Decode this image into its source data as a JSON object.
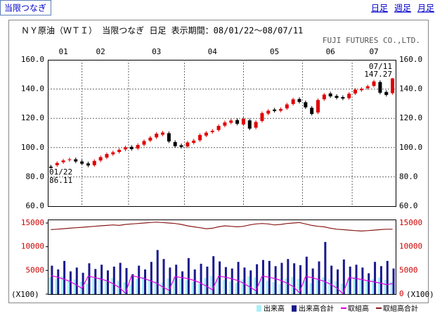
{
  "tab": "当限つなぎ",
  "links": [
    "日足",
    "週足",
    "月足"
  ],
  "chart_data": [
    {
      "type": "candlestick",
      "title": "ＮＹ原油（ＷＴＩ） 当限つなぎ 日足 表示期間：08/01/22～08/07/11",
      "publisher": "FUJI FUTURES CO.,LTD.",
      "categories": [
        null,
        null,
        "01",
        null,
        null,
        null,
        null,
        null,
        "02",
        null,
        null,
        null,
        null,
        null,
        null,
        null,
        null,
        "03",
        null,
        null,
        null,
        null,
        null,
        null,
        null,
        null,
        "04",
        null,
        null,
        null,
        null,
        null,
        null,
        null,
        null,
        null,
        "05",
        null,
        null,
        null,
        null,
        null,
        null,
        null,
        null,
        "06",
        null,
        null,
        null,
        null,
        null,
        null,
        "07",
        null,
        null,
        null
      ],
      "open": [
        87.0,
        88.0,
        90.0,
        91.5,
        92.0,
        90.5,
        89.2,
        88.0,
        91.2,
        93.2,
        95.4,
        97.0,
        98.8,
        100.5,
        99.4,
        102.0,
        104.8,
        107.0,
        108.8,
        109.8,
        103.8,
        101.6,
        100.8,
        103.2,
        105.0,
        108.2,
        110.6,
        112.0,
        115.0,
        117.0,
        118.8,
        115.8,
        118.6,
        113.6,
        118.2,
        123.2,
        126.0,
        125.2,
        126.8,
        129.8,
        133.2,
        131.0,
        127.2,
        124.0,
        133.0,
        137.0,
        135.3,
        134.5,
        133.8,
        137.0,
        139.2,
        140.6,
        142.2,
        144.8,
        138.0,
        137.2
      ],
      "high": [
        88.2,
        90.6,
        92.3,
        93.1,
        93.2,
        91.7,
        90.4,
        92.0,
        94.6,
        96.7,
        98.0,
        99.6,
        101.3,
        101.7,
        103.0,
        105.6,
        108.0,
        110.6,
        111.4,
        111.0,
        105.0,
        102.8,
        104.6,
        106.0,
        109.7,
        111.3,
        112.7,
        116.0,
        118.4,
        119.6,
        120.0,
        120.8,
        119.8,
        118.7,
        124.7,
        126.3,
        127.2,
        127.5,
        130.6,
        134.1,
        134.4,
        132.2,
        128.4,
        133.6,
        137.3,
        138.2,
        136.5,
        135.7,
        137.9,
        140.7,
        141.3,
        143.0,
        146.3,
        146.0,
        139.2,
        147.6
      ],
      "low": [
        85.8,
        86.9,
        88.9,
        90.3,
        89.4,
        88.0,
        86.6,
        86.9,
        90.0,
        92.1,
        94.3,
        95.9,
        97.6,
        97.9,
        98.3,
        100.9,
        103.7,
        105.9,
        107.7,
        103.1,
        99.9,
        99.4,
        99.7,
        102.1,
        103.9,
        107.1,
        109.5,
        110.9,
        113.9,
        115.9,
        115.2,
        114.7,
        111.9,
        112.5,
        117.1,
        122.1,
        123.9,
        124.1,
        125.7,
        128.7,
        130.1,
        126.4,
        121.9,
        122.9,
        131.9,
        133.9,
        132.9,
        132.4,
        132.7,
        135.9,
        138.1,
        139.5,
        141.1,
        136.4,
        134.9,
        136.1
      ],
      "close": [
        86.11,
        89.5,
        91.2,
        92.0,
        90.5,
        89.0,
        87.8,
        90.9,
        93.5,
        95.6,
        96.8,
        98.5,
        100.2,
        99.0,
        101.8,
        104.5,
        106.8,
        109.5,
        110.3,
        104.2,
        101.0,
        100.5,
        103.5,
        104.8,
        108.6,
        110.2,
        111.5,
        114.8,
        117.2,
        118.5,
        116.3,
        119.7,
        113.0,
        117.5,
        123.6,
        125.2,
        125.0,
        126.4,
        129.5,
        133.0,
        131.2,
        127.5,
        123.0,
        132.5,
        136.2,
        135.0,
        134.0,
        133.5,
        136.8,
        139.6,
        140.2,
        141.9,
        145.2,
        137.5,
        136.0,
        147.27
      ],
      "up_color": "#e00000",
      "down_color": "#000000",
      "ylim": [
        60,
        160
      ],
      "yticks": [
        {
          "value": 60,
          "label": "60.0"
        },
        {
          "value": 80,
          "label": "80.0"
        },
        {
          "value": 100,
          "label": "100.0"
        },
        {
          "value": 120,
          "label": "120.0"
        },
        {
          "value": 140,
          "label": "140.0"
        },
        {
          "value": 160,
          "label": "160.0"
        }
      ],
      "grid": true,
      "start_note": {
        "date": "01/22",
        "price": 86.11
      },
      "end_note": {
        "date": "07/11",
        "price": 147.27
      }
    },
    {
      "type": "bar-line",
      "unit": "(X100)",
      "ylim": [
        0,
        15000
      ],
      "yticks": [
        0,
        5000,
        10000,
        15000
      ],
      "series": [
        {
          "name": "出来高",
          "mark": "bar",
          "color": "#a8f0f8",
          "values": [
            3500,
            3200,
            3800,
            2900,
            3100,
            2600,
            2200,
            3300,
            3600,
            3000,
            3400,
            2800,
            2500,
            2000,
            3200,
            3600,
            3100,
            2700,
            2400,
            3300,
            3700,
            3200,
            2900,
            2600,
            2200,
            3400,
            3800,
            3300,
            3000,
            2700,
            2300,
            3100,
            3700,
            3500,
            3200,
            2800,
            2500,
            2100,
            3300,
            3600,
            3200,
            2800,
            2300,
            3000,
            3500,
            3100,
            2700,
            2200,
            3300,
            3600,
            3100,
            2700,
            3200,
            3500,
            3000,
            2600
          ]
        },
        {
          "name": "出来高合計",
          "mark": "bar",
          "color": "#1a1a8c",
          "values": [
            6000,
            5200,
            7000,
            4800,
            5600,
            4500,
            6500,
            5300,
            6200,
            5000,
            5800,
            6600,
            5500,
            4200,
            6000,
            5200,
            6800,
            9300,
            7400,
            5600,
            6200,
            4800,
            7600,
            5200,
            6400,
            5800,
            8000,
            6900,
            5700,
            5400,
            6800,
            5600,
            5000,
            6300,
            7200,
            7000,
            5900,
            6600,
            7400,
            6500,
            6100,
            7900,
            5400,
            6900,
            11000,
            6000,
            5200,
            7300,
            5800,
            6200,
            5600,
            4400,
            6800,
            5900,
            7000,
            5400
          ]
        },
        {
          "name": "取組高",
          "mark": "line",
          "color": "#e000e0",
          "values": [
            3900,
            3600,
            3200,
            2700,
            2000,
            1200,
            3800,
            3500,
            3200,
            2800,
            2200,
            1400,
            200,
            3900,
            3600,
            3300,
            2800,
            2300,
            1500,
            800,
            3700,
            3500,
            3300,
            2900,
            2400,
            1700,
            900,
            3800,
            3600,
            3300,
            2900,
            2300,
            1500,
            700,
            3800,
            3600,
            3300,
            2900,
            2300,
            1600,
            300,
            3700,
            3500,
            3100,
            2700,
            2100,
            1300,
            100,
            3500,
            3300,
            3100,
            2800,
            2600,
            2300,
            2000,
            2200
          ]
        },
        {
          "name": "取組高合計",
          "mark": "line",
          "color": "#8b1a1a",
          "values": [
            13600,
            13700,
            13800,
            13900,
            14000,
            14100,
            14200,
            14300,
            14400,
            14500,
            14600,
            14500,
            14700,
            14800,
            14900,
            15000,
            15100,
            15200,
            15100,
            15000,
            14900,
            14700,
            14400,
            14200,
            14000,
            13800,
            13900,
            14200,
            14400,
            14300,
            14200,
            14300,
            14600,
            14800,
            14900,
            14800,
            14600,
            14700,
            14900,
            15000,
            15100,
            14800,
            14500,
            14300,
            14200,
            13900,
            13700,
            13600,
            13500,
            13400,
            13300,
            13400,
            13500,
            13600,
            13700,
            13700
          ]
        }
      ]
    }
  ]
}
